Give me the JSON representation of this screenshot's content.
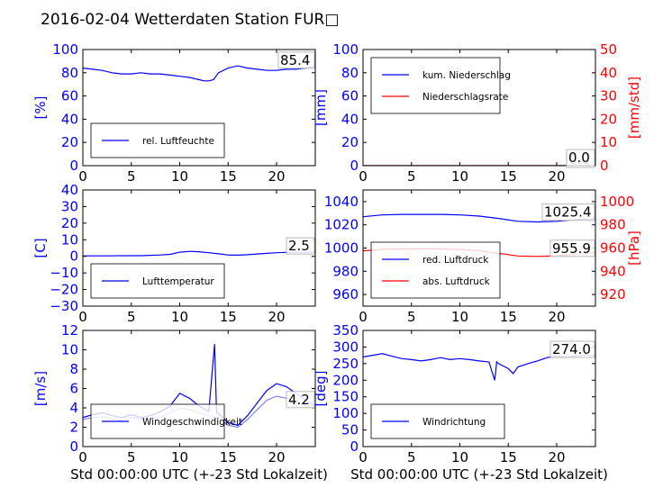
{
  "title": "2016-02-04 Wetterdaten Station FUR□",
  "colors": {
    "primary": "#0000ff",
    "secondary": "#ff0000",
    "wind_gust": "#8080ff"
  },
  "chart_data": [
    {
      "type": "line",
      "id": "humidity",
      "xlabel": "",
      "ylabel": "[%]",
      "xlim": [
        0,
        24
      ],
      "ylim": [
        0,
        100
      ],
      "xticks": [
        "0",
        "5",
        "10",
        "15",
        "20"
      ],
      "yticks": [
        "0",
        "20",
        "40",
        "60",
        "80",
        "100"
      ],
      "last_value": "85.4",
      "legend_position": "lower-left",
      "series": [
        {
          "name": "rel. Luftfeuchte",
          "color": "#0000ff",
          "axis": "left",
          "x": [
            0,
            1,
            2,
            3,
            4,
            5,
            6,
            7,
            8,
            9,
            10,
            11,
            12,
            12.5,
            13,
            13.5,
            14,
            15,
            16,
            17,
            18,
            19,
            20,
            21,
            22,
            23,
            24
          ],
          "y": [
            84,
            83,
            82,
            80,
            79,
            79,
            80,
            79,
            79,
            78,
            77,
            76,
            74,
            73,
            73,
            74,
            80,
            84,
            86,
            84,
            83,
            82,
            82,
            83,
            83,
            84,
            85.4
          ]
        }
      ]
    },
    {
      "type": "line",
      "id": "precipitation",
      "xlabel": "",
      "ylabel": "[mm]",
      "ylabel_right": "[mm/std]",
      "xlim": [
        0,
        24
      ],
      "ylim": [
        0,
        100
      ],
      "ylim_right": [
        0,
        50
      ],
      "xticks": [
        "0",
        "5",
        "10",
        "15",
        "20"
      ],
      "yticks": [
        "0",
        "20",
        "40",
        "60",
        "80",
        "100"
      ],
      "yticks_right": [
        "0",
        "10",
        "20",
        "30",
        "40",
        "50"
      ],
      "last_value": "0.0",
      "last_value_right": "0.0",
      "legend_position": "upper-left",
      "series": [
        {
          "name": "kum. Niederschlag",
          "color": "#0000ff",
          "axis": "left",
          "x": [
            0,
            6,
            12,
            18,
            24
          ],
          "y": [
            0,
            0,
            0,
            0,
            0
          ]
        },
        {
          "name": "Niederschlagsrate",
          "color": "#ff0000",
          "axis": "right",
          "x": [
            0,
            6,
            12,
            18,
            24
          ],
          "y": [
            0,
            0,
            0,
            0,
            0
          ]
        }
      ]
    },
    {
      "type": "line",
      "id": "temperature",
      "xlabel": "",
      "ylabel": "[C]",
      "xlim": [
        0,
        24
      ],
      "ylim": [
        -30,
        40
      ],
      "xticks": [
        "0",
        "5",
        "10",
        "15",
        "20"
      ],
      "yticks": [
        "−30",
        "−20",
        "−10",
        "0",
        "10",
        "20",
        "30",
        "40"
      ],
      "last_value": "2.5",
      "legend_position": "lower-left",
      "series": [
        {
          "name": "Lufttemperatur",
          "color": "#0000ff",
          "axis": "left",
          "x": [
            0,
            2,
            4,
            6,
            8,
            9,
            10,
            11,
            12,
            13,
            14,
            15,
            16,
            17,
            18,
            19,
            20,
            21,
            22,
            23,
            24
          ],
          "y": [
            0.3,
            0.3,
            0.4,
            0.4,
            0.8,
            1.2,
            2.5,
            3.0,
            2.8,
            2.2,
            1.5,
            0.8,
            0.7,
            1.0,
            1.4,
            1.8,
            2.2,
            2.4,
            2.4,
            2.5,
            2.5
          ]
        }
      ]
    },
    {
      "type": "line",
      "id": "pressure",
      "xlabel": "",
      "ylabel": "",
      "ylabel_right": "[hPa]",
      "xlim": [
        0,
        24
      ],
      "ylim": [
        950,
        1050
      ],
      "ylim_right": [
        910,
        1010
      ],
      "xticks": [
        "0",
        "5",
        "10",
        "15",
        "20"
      ],
      "yticks": [
        "960",
        "980",
        "1000",
        "1020",
        "1040"
      ],
      "yticks_right": [
        "920",
        "940",
        "960",
        "980",
        "1000"
      ],
      "last_value": "1025.4",
      "last_value_right": "955.9",
      "legend_position": "lower-left",
      "series": [
        {
          "name": "red. Luftdruck",
          "color": "#0000ff",
          "axis": "left",
          "x": [
            0,
            2,
            4,
            6,
            8,
            10,
            12,
            14,
            16,
            18,
            20,
            22,
            24
          ],
          "y": [
            1027,
            1028.5,
            1029,
            1029,
            1029,
            1028.5,
            1027.5,
            1025.5,
            1023,
            1022.5,
            1023,
            1024.5,
            1025.4
          ]
        },
        {
          "name": "abs. Luftdruck",
          "color": "#ff0000",
          "axis": "right",
          "x": [
            0,
            2,
            4,
            6,
            8,
            10,
            12,
            14,
            16,
            18,
            20,
            22,
            24
          ],
          "y": [
            957.5,
            958.8,
            959.2,
            959.2,
            959.2,
            958.8,
            957.7,
            955.5,
            953.2,
            952.8,
            953.3,
            954.8,
            955.9
          ]
        }
      ]
    },
    {
      "type": "line",
      "id": "wind_speed",
      "xlabel": "Std 00:00:00 UTC (+-23 Std Lokalzeit)",
      "ylabel": "[m/s]",
      "xlim": [
        0,
        24
      ],
      "ylim": [
        0,
        12
      ],
      "xticks": [
        "0",
        "5",
        "10",
        "15",
        "20"
      ],
      "yticks": [
        "0",
        "2",
        "4",
        "6",
        "8",
        "10",
        "12"
      ],
      "last_value": "4.2",
      "legend_position": "lower-left",
      "series": [
        {
          "name": "Windgeschwindigkeit",
          "color": "#0000ff",
          "axis": "left",
          "x": [
            0,
            1,
            2,
            3,
            4,
            5,
            6,
            7,
            8,
            9,
            10,
            11,
            12,
            13,
            13.6,
            13.8,
            14,
            15,
            16,
            17,
            18,
            19,
            20,
            21,
            22,
            23,
            24
          ],
          "y": [
            3.0,
            3.3,
            3.5,
            3.2,
            3.0,
            3.3,
            3.0,
            3.2,
            3.6,
            4.2,
            5.5,
            5.0,
            4.2,
            3.6,
            10.6,
            3.5,
            3.4,
            2.5,
            2.2,
            3.2,
            4.5,
            5.8,
            6.5,
            6.2,
            5.5,
            4.8,
            4.2
          ]
        },
        {
          "name": "",
          "color": "#8080ff",
          "axis": "left",
          "x": [
            0,
            1,
            2,
            3,
            4,
            5,
            6,
            7,
            8,
            9,
            10,
            11,
            12,
            13,
            14,
            15,
            16,
            17,
            18,
            19,
            20,
            21,
            22,
            23,
            24
          ],
          "y": [
            2.8,
            3.0,
            3.1,
            2.9,
            2.7,
            3.0,
            2.8,
            2.9,
            3.0,
            3.5,
            4.0,
            3.8,
            3.5,
            3.2,
            3.0,
            2.2,
            2.0,
            2.8,
            3.8,
            4.8,
            5.2,
            5.0,
            4.6,
            4.2,
            4.0
          ]
        }
      ]
    },
    {
      "type": "line",
      "id": "wind_direction",
      "xlabel": "Std 00:00:00 UTC (+-23 Std Lokalzeit)",
      "ylabel": "[deg]",
      "xlim": [
        0,
        24
      ],
      "ylim": [
        0,
        350
      ],
      "xticks": [
        "0",
        "5",
        "10",
        "15",
        "20"
      ],
      "yticks": [
        "0",
        "50",
        "100",
        "150",
        "200",
        "250",
        "300",
        "350"
      ],
      "last_value": "274.0",
      "legend_position": "lower-left",
      "series": [
        {
          "name": "Windrichtung",
          "color": "#0000ff",
          "axis": "left",
          "x": [
            0,
            1,
            2,
            3,
            4,
            5,
            6,
            7,
            8,
            9,
            10,
            11,
            12,
            13,
            13.6,
            13.8,
            14,
            15,
            15.5,
            16,
            17,
            18,
            19,
            20,
            21,
            22,
            23,
            24
          ],
          "y": [
            270,
            275,
            280,
            272,
            265,
            262,
            258,
            262,
            268,
            262,
            265,
            262,
            258,
            255,
            200,
            255,
            250,
            235,
            220,
            240,
            250,
            258,
            268,
            272,
            270,
            272,
            276,
            274
          ]
        }
      ]
    }
  ]
}
